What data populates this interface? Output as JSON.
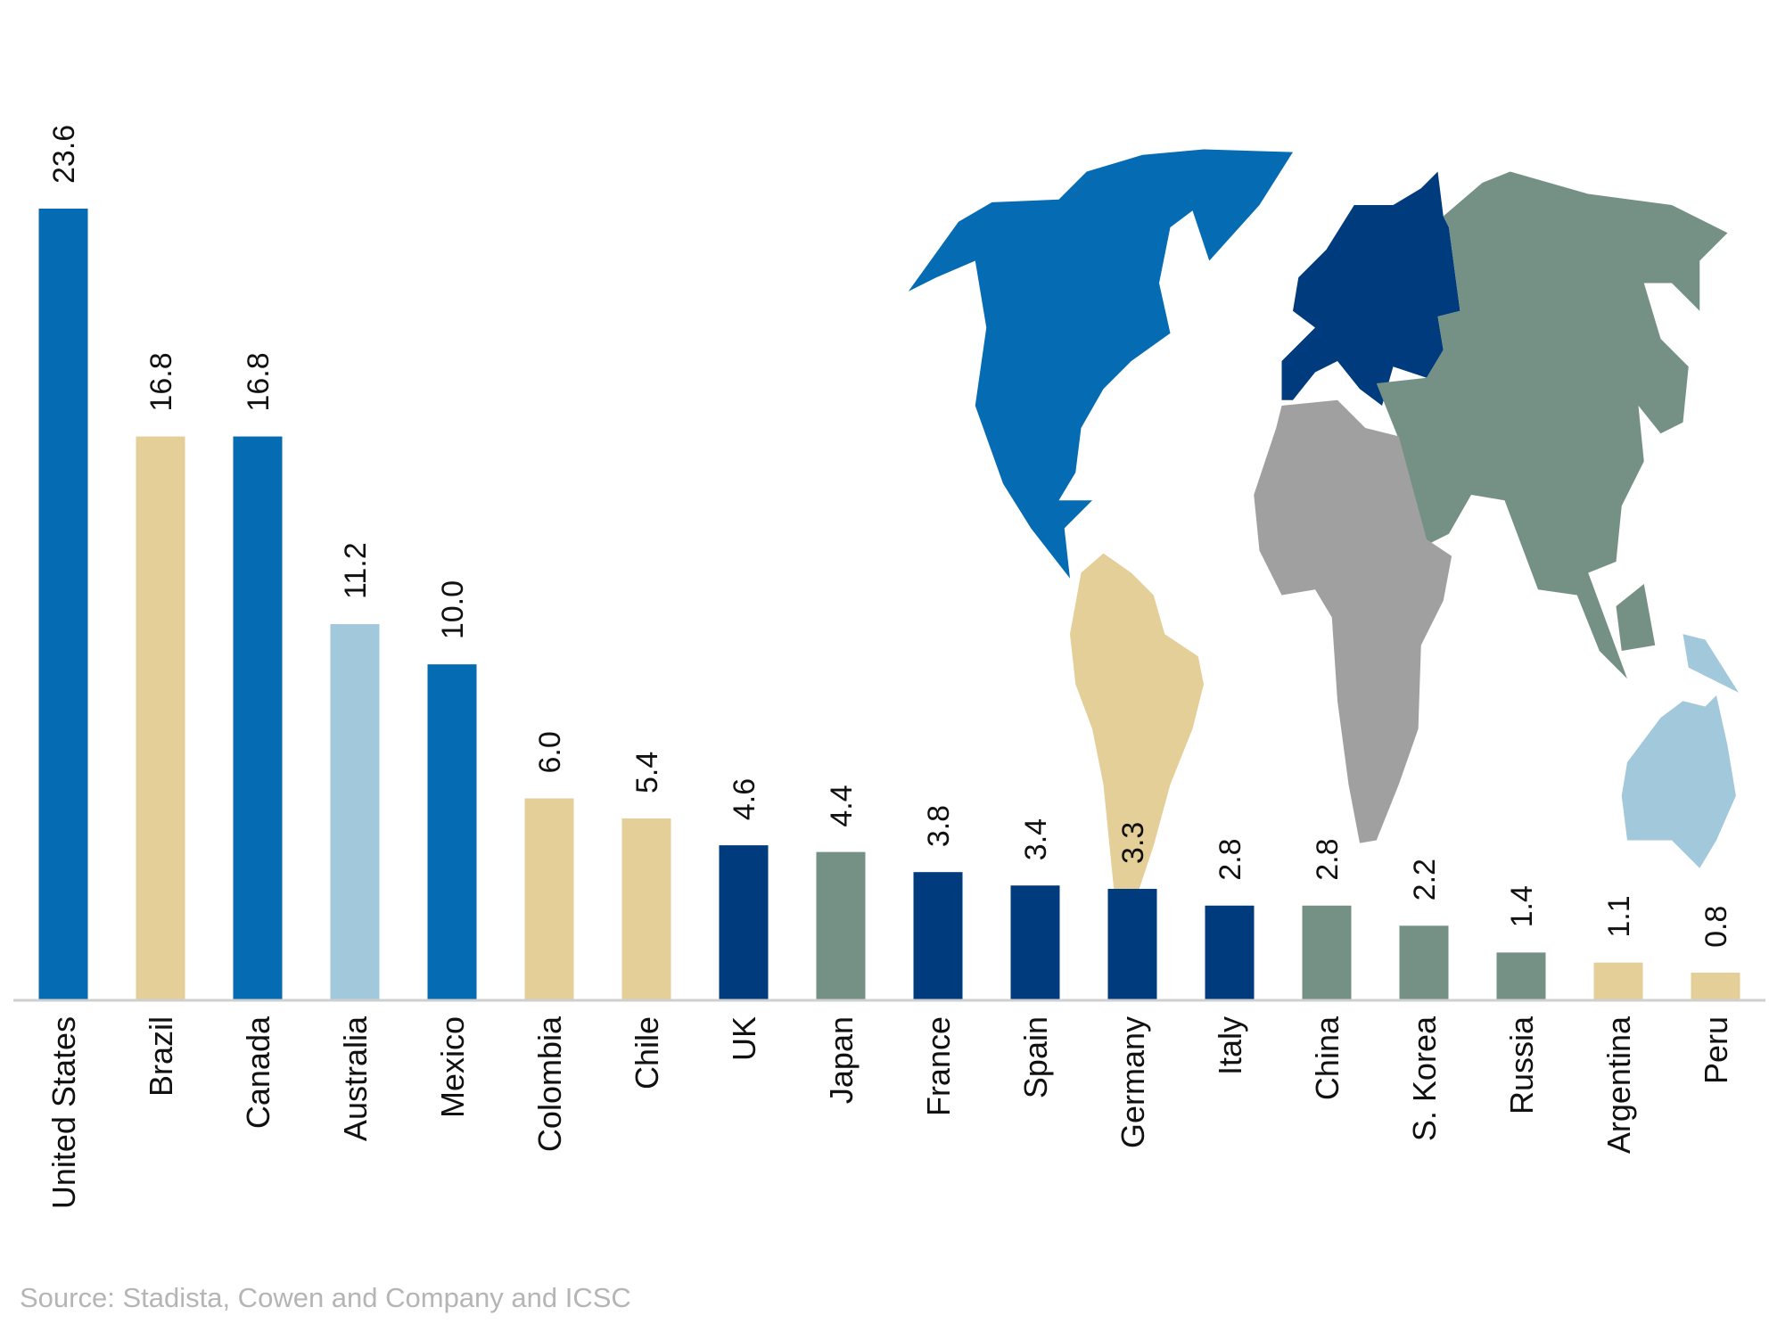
{
  "chart_data": {
    "type": "bar",
    "title": "",
    "xlabel": "",
    "ylabel": "",
    "ylim": [
      0,
      23.6
    ],
    "grid": false,
    "categories": [
      "United States",
      "Brazil",
      "Canada",
      "Australia",
      "Mexico",
      "Colombia",
      "Chile",
      "UK",
      "Japan",
      "France",
      "Spain",
      "Germany",
      "Italy",
      "China",
      "S. Korea",
      "Russia",
      "Argentina",
      "Peru"
    ],
    "values": [
      23.6,
      16.8,
      16.8,
      11.2,
      10.0,
      6.0,
      5.4,
      4.6,
      4.4,
      3.8,
      3.4,
      3.3,
      2.8,
      2.8,
      2.2,
      1.4,
      1.1,
      0.8
    ],
    "value_labels": [
      "23.6",
      "16.8",
      "16.8",
      "11.2",
      "10.0",
      "6.0",
      "5.4",
      "4.6",
      "4.4",
      "3.8",
      "3.4",
      "3.3",
      "2.8",
      "2.8",
      "2.2",
      "1.4",
      "1.1",
      "0.8"
    ],
    "regions": [
      "north-america",
      "south-america",
      "north-america",
      "oceania",
      "north-america",
      "south-america",
      "south-america",
      "europe",
      "asia",
      "europe",
      "europe",
      "europe",
      "europe",
      "asia",
      "asia",
      "asia",
      "south-america",
      "south-america"
    ],
    "region_colors": {
      "north-america": "#056bb3",
      "south-america": "#e5cf98",
      "oceania": "#a2c8dc",
      "europe": "#003b7e",
      "asia": "#759185",
      "africa": "#a0a0a0"
    },
    "source": "Source: Stadista, Cowen and Company and ICSC"
  }
}
